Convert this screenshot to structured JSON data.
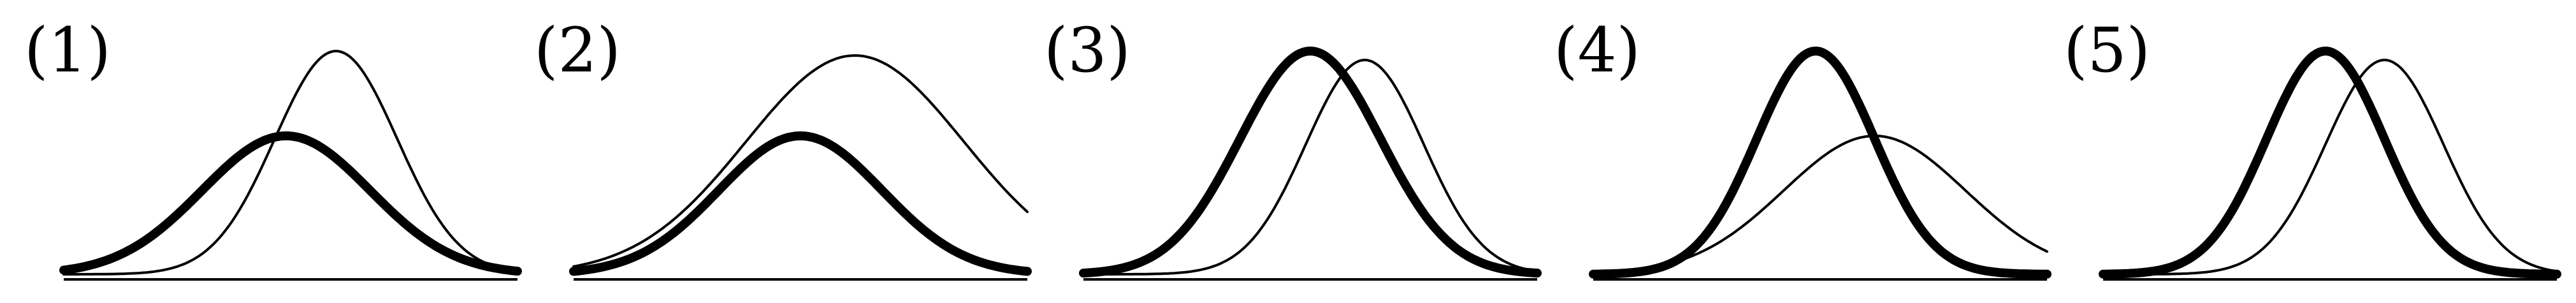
{
  "panels": [
    {
      "label": "(1)",
      "thin": {
        "mean": 0.6,
        "sd": 0.135,
        "peak": 1.0
      },
      "thick": {
        "mean": 0.49,
        "sd": 0.185,
        "peak": 0.62
      }
    },
    {
      "label": "(2)",
      "thin": {
        "mean": 0.62,
        "sd": 0.24,
        "peak": 0.98
      },
      "thick": {
        "mean": 0.5,
        "sd": 0.18,
        "peak": 0.62
      }
    },
    {
      "label": "(3)",
      "thin": {
        "mean": 0.62,
        "sd": 0.13,
        "peak": 0.96
      },
      "thick": {
        "mean": 0.5,
        "sd": 0.155,
        "peak": 1.0
      }
    },
    {
      "label": "(4)",
      "thin": {
        "mean": 0.62,
        "sd": 0.2,
        "peak": 0.62
      },
      "thick": {
        "mean": 0.49,
        "sd": 0.13,
        "peak": 1.0
      }
    },
    {
      "label": "(5)",
      "thin": {
        "mean": 0.62,
        "sd": 0.13,
        "peak": 0.96
      },
      "thick": {
        "mean": 0.49,
        "sd": 0.13,
        "peak": 1.0
      }
    }
  ]
}
